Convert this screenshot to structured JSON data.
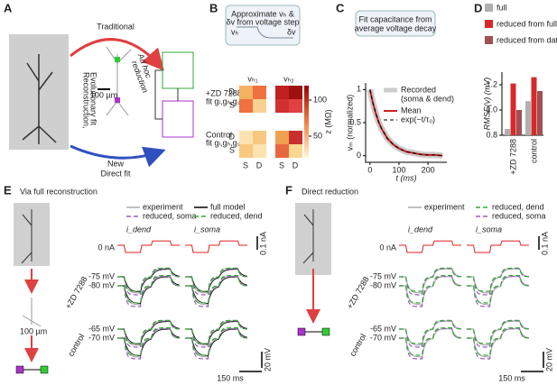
{
  "panel_a": {
    "label": "A",
    "traditional": "Traditional",
    "reconstruction": "Reconstruction,",
    "evolutionary": "Evolutionary fit",
    "adhoc": "Ad hoc",
    "reduction": "reduction",
    "scale": "100 µm",
    "new": "New",
    "direct": "Direct fit"
  },
  "panel_b": {
    "label": "B",
    "box_line1": "Approximate vₕ &",
    "box_line2": "δv from voltage step",
    "vh": "vₕ",
    "dv": "δv",
    "col1": "vₕ₁",
    "col2": "vₕ₂",
    "zd": "+ZD 7288",
    "zd_fit": "fit gₗ,gₕ,gₛ,gc",
    "control": "Control",
    "control_fit": "fit gₗ,gₕ,gₛ,gc",
    "row_d": "D",
    "row_s": "S",
    "col_s": "S",
    "col_d": "D",
    "cbar_ticks": [
      100,
      50
    ],
    "cbar_label": "z (MΩ)"
  },
  "panel_c": {
    "label": "C",
    "box_line1": "Fit capacitance from",
    "box_line2": "average voltage decay",
    "legend_recorded": "Recorded",
    "legend_recorded2": "(soma & dend)",
    "legend_mean": "Mean",
    "legend_fit": "exp(−t/τ₀)",
    "ylabel": "vₘ (normalized)",
    "xlabel": "t (ms)",
    "xlim": [
      -15,
      265
    ],
    "ylim": [
      -0.1,
      1.1
    ],
    "xticks": [
      0,
      100,
      200
    ],
    "yticks": [
      0,
      {
        "value": 0.5,
        "label": "0.5"
      },
      1
    ],
    "t": [
      0,
      10,
      20,
      30,
      40,
      60,
      80,
      100,
      125,
      150,
      175,
      200,
      225,
      250
    ],
    "v": [
      1,
      0.8,
      0.64,
      0.51,
      0.41,
      0.26,
      0.17,
      0.11,
      0.06,
      0.04,
      0.02,
      0.01,
      0.01,
      0
    ]
  },
  "panel_d": {
    "label": "D",
    "ylabel": "RMSE(v) (mV)",
    "ylim": [
      0.8,
      1.3
    ],
    "yticks": [
      {
        "value": 0.8,
        "label": "0.8"
      },
      {
        "value": 1.0,
        "label": "1.0"
      },
      {
        "value": 1.2,
        "label": "1.2"
      }
    ],
    "categories": [
      "+ZD 7288",
      "control"
    ],
    "series": [
      {
        "name": "full",
        "color": "#b0b0b0",
        "values": [
          0.85,
          1.07
        ]
      },
      {
        "name": "reduced from full",
        "color": "#d62a2a",
        "values": [
          1.21,
          1.26
        ]
      },
      {
        "name": "reduced from data",
        "color": "#a05050",
        "values": [
          1.0,
          1.15
        ]
      }
    ]
  },
  "panel_e": {
    "label": "E",
    "title": "Via full reconstruction",
    "legend": [
      "experiment",
      "full model",
      "reduced, soma",
      "reduced, dend"
    ],
    "zero": "0 nA",
    "i_dend": "i_dend",
    "i_soma": "i_soma",
    "iscale": "0.1 nA",
    "zd": "+ZD 7288",
    "v1": "-75 mV",
    "v2": "-80 mV",
    "control": "control",
    "v3": "-65 mV",
    "v4": "-70 mV",
    "vscale": "20 mV",
    "tscale": "150 ms",
    "scale": "100 µm"
  },
  "panel_f": {
    "label": "F",
    "title": "Direct reduction",
    "legend": [
      "experiment",
      "reduced, soma",
      "reduced, dend"
    ],
    "zero": "0 nA",
    "i_dend": "i_dend",
    "i_soma": "i_soma",
    "iscale": "0.1 nA",
    "zd": "+ZD 7288",
    "v1": "-75 mV",
    "v2": "-80 mV",
    "control": "control",
    "v3": "-65 mV",
    "v4": "-70 mV",
    "vscale": "20 mV",
    "tscale": "150 ms"
  }
}
